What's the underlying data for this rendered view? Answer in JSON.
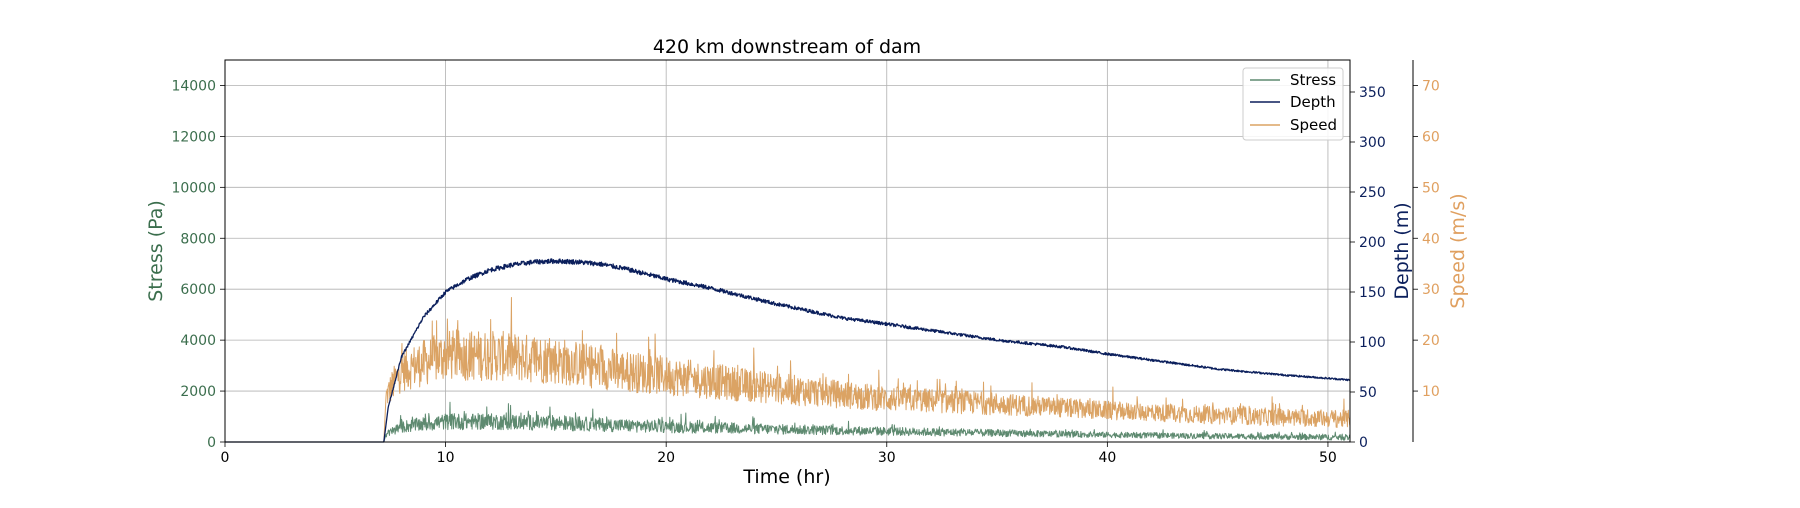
{
  "chart_data": {
    "type": "line",
    "title": "420 km downstream of dam",
    "xlabel": "Time (hr)",
    "xlim": [
      0,
      51
    ],
    "xticks": [
      0,
      10,
      20,
      30,
      40,
      50
    ],
    "grid": true,
    "legend_position": "top-right",
    "axes": [
      {
        "id": "stress",
        "label": "Stress (Pa)",
        "side": "left",
        "color": "#3b6e4d",
        "ylim": [
          0,
          15000
        ],
        "ticks": [
          0,
          2000,
          4000,
          6000,
          8000,
          10000,
          12000,
          14000
        ]
      },
      {
        "id": "depth",
        "label": "Depth (m)",
        "side": "right",
        "color": "#0b1f5c",
        "ylim": [
          0,
          382
        ],
        "ticks": [
          0,
          50,
          100,
          150,
          200,
          250,
          300,
          350
        ]
      },
      {
        "id": "speed",
        "label": "Speed (m/s)",
        "side": "right-outer",
        "color": "#e0a060",
        "ylim": [
          0,
          75
        ],
        "ticks": [
          10,
          20,
          30,
          40,
          50,
          60,
          70
        ]
      }
    ],
    "series": [
      {
        "name": "Stress",
        "axis": "stress",
        "color": "#5e8a70",
        "noise": 320,
        "x": [
          0,
          7.2,
          7.3,
          8,
          10,
          12,
          15,
          18,
          20,
          25,
          30,
          35,
          40,
          45,
          51
        ],
        "y": [
          0,
          0,
          300,
          600,
          800,
          800,
          750,
          650,
          600,
          500,
          420,
          350,
          280,
          230,
          180
        ]
      },
      {
        "name": "Depth",
        "axis": "depth",
        "color": "#0b1f5c",
        "noise": 5,
        "x": [
          0,
          7.2,
          7.4,
          8,
          9,
          10,
          11,
          12,
          13,
          14,
          15,
          16,
          17,
          18,
          20,
          22,
          25,
          28,
          30,
          35,
          38,
          40,
          45,
          48,
          51
        ],
        "y": [
          0,
          0,
          35,
          85,
          125,
          150,
          163,
          172,
          177,
          180,
          181,
          180,
          178,
          174,
          163,
          154,
          138,
          124,
          118,
          102,
          95,
          88,
          73,
          67,
          62
        ]
      },
      {
        "name": "Speed",
        "axis": "speed",
        "color": "#dba364",
        "noise": 5,
        "x": [
          0,
          7.2,
          7.3,
          8,
          10,
          12,
          15,
          18,
          20,
          25,
          30,
          35,
          40,
          45,
          51
        ],
        "y": [
          0,
          0,
          9,
          14,
          17,
          17,
          16,
          14,
          13,
          10.5,
          8.5,
          7.5,
          6.2,
          5.2,
          4.5
        ]
      }
    ]
  }
}
